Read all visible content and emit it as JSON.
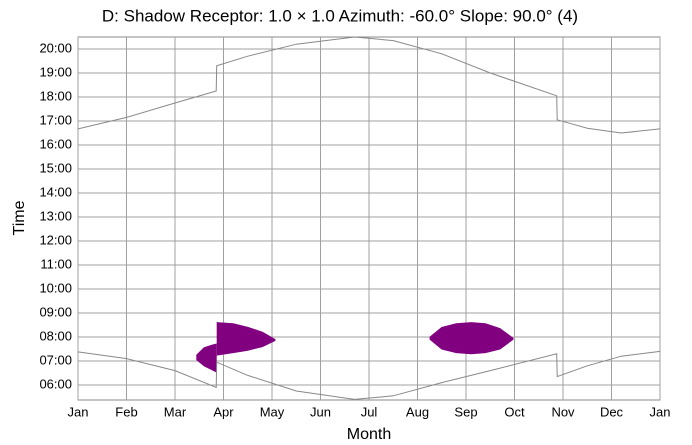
{
  "chart_data": {
    "type": "line",
    "title": "D: Shadow Receptor: 1.0 × 1.0  Azimuth: -60.0°  Slope: 90.0° (4)",
    "xlabel": "Month",
    "ylabel": "Time",
    "xlim": [
      0,
      12
    ],
    "xticks": [
      {
        "value": 0,
        "label": "Jan"
      },
      {
        "value": 1,
        "label": "Feb"
      },
      {
        "value": 2,
        "label": "Mar"
      },
      {
        "value": 3,
        "label": "Apr"
      },
      {
        "value": 4,
        "label": "May"
      },
      {
        "value": 5,
        "label": "Jun"
      },
      {
        "value": 6,
        "label": "Jul"
      },
      {
        "value": 7,
        "label": "Aug"
      },
      {
        "value": 8,
        "label": "Sep"
      },
      {
        "value": 9,
        "label": "Oct"
      },
      {
        "value": 10,
        "label": "Nov"
      },
      {
        "value": 11,
        "label": "Dec"
      },
      {
        "value": 12,
        "label": "Jan"
      }
    ],
    "ylim": [
      5.375,
      20.5
    ],
    "yticks": [
      {
        "value": 6,
        "label": "06:00"
      },
      {
        "value": 7,
        "label": "07:00"
      },
      {
        "value": 8,
        "label": "08:00"
      },
      {
        "value": 9,
        "label": "09:00"
      },
      {
        "value": 10,
        "label": "10:00"
      },
      {
        "value": 11,
        "label": "11:00"
      },
      {
        "value": 12,
        "label": "12:00"
      },
      {
        "value": 13,
        "label": "13:00"
      },
      {
        "value": 14,
        "label": "14:00"
      },
      {
        "value": 15,
        "label": "15:00"
      },
      {
        "value": 16,
        "label": "16:00"
      },
      {
        "value": 17,
        "label": "17:00"
      },
      {
        "value": 18,
        "label": "18:00"
      },
      {
        "value": 19,
        "label": "19:00"
      },
      {
        "value": 20,
        "label": "20:00"
      }
    ],
    "grid": true,
    "series": [
      {
        "color": "#888888",
        "x": [
          0,
          1,
          2,
          2.85,
          2.86,
          3.5,
          4.5,
          5.7,
          6.5,
          7.5,
          8.5,
          9.87,
          9.88,
          10.5,
          11.2,
          12
        ],
        "values": [
          16.67,
          17.15,
          17.75,
          18.25,
          19.3,
          19.7,
          20.2,
          20.5,
          20.35,
          19.8,
          19.0,
          18.05,
          17.05,
          16.7,
          16.5,
          16.67
        ]
      },
      {
        "color": "#888888",
        "x": [
          0,
          1,
          2,
          2.85,
          2.86,
          3.5,
          4.5,
          5.7,
          6.5,
          7.5,
          8.5,
          9.87,
          9.88,
          10.5,
          11.2,
          12
        ],
        "values": [
          7.38,
          7.1,
          6.6,
          5.9,
          6.95,
          6.4,
          5.75,
          5.4,
          5.55,
          6.1,
          6.6,
          7.3,
          6.35,
          6.8,
          7.2,
          7.4
        ]
      }
    ],
    "areas": [
      {
        "color": "#800080",
        "x": [
          2.45,
          2.6,
          2.75,
          2.85
        ],
        "high": [
          7.25,
          7.55,
          7.65,
          7.7
        ],
        "low": [
          7.05,
          6.8,
          6.65,
          6.55
        ]
      },
      {
        "color": "#800080",
        "x": [
          2.87,
          3.2,
          3.5,
          3.8,
          4.06
        ],
        "high": [
          8.6,
          8.55,
          8.4,
          8.2,
          7.9
        ],
        "low": [
          7.25,
          7.35,
          7.45,
          7.6,
          7.85
        ]
      },
      {
        "color": "#800080",
        "x": [
          7.26,
          7.5,
          7.8,
          8.11,
          8.4,
          8.7,
          8.97
        ],
        "high": [
          8.0,
          8.4,
          8.55,
          8.6,
          8.55,
          8.35,
          7.95
        ],
        "low": [
          7.9,
          7.5,
          7.35,
          7.3,
          7.35,
          7.5,
          7.9
        ]
      }
    ]
  }
}
